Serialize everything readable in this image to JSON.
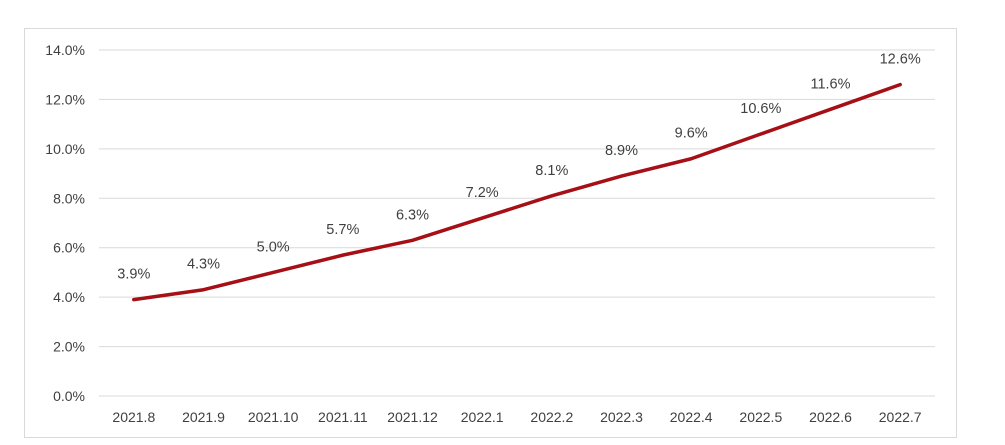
{
  "chart_data": {
    "type": "line",
    "title": "",
    "xlabel": "",
    "ylabel": "",
    "categories": [
      "2021.8",
      "2021.9",
      "2021.10",
      "2021.11",
      "2021.12",
      "2022.1",
      "2022.2",
      "2022.3",
      "2022.4",
      "2022.5",
      "2022.6",
      "2022.7"
    ],
    "series": [
      {
        "values": [
          3.9,
          4.3,
          5.0,
          5.7,
          6.3,
          7.2,
          8.1,
          8.9,
          9.6,
          10.6,
          11.6,
          12.6
        ],
        "labels": [
          "3.9%",
          "4.3%",
          "5.0%",
          "5.7%",
          "6.3%",
          "7.2%",
          "8.1%",
          "8.9%",
          "9.6%",
          "10.6%",
          "11.6%",
          "12.6%"
        ],
        "color": "#a50f15"
      }
    ],
    "ylim": [
      0,
      14
    ],
    "y_ticks": [
      "0.0%",
      "2.0%",
      "4.0%",
      "6.0%",
      "8.0%",
      "10.0%",
      "12.0%",
      "14.0%"
    ],
    "grid": true,
    "gridColor": "#d9d9d9",
    "legend": "none"
  }
}
